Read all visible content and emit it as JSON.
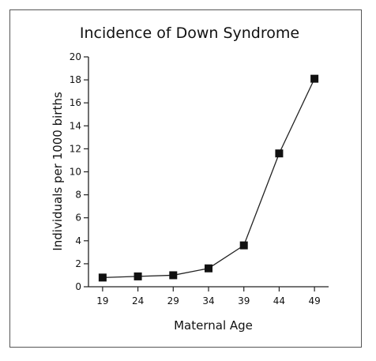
{
  "chart_data": {
    "type": "line",
    "title": "Incidence of Down Syndrome",
    "xlabel": "Maternal Age",
    "ylabel": "Individuals per 1000 births",
    "x": [
      19,
      24,
      29,
      34,
      39,
      44,
      49
    ],
    "x_ticks": [
      19,
      24,
      29,
      34,
      39,
      44,
      49
    ],
    "y_ticks": [
      0,
      2,
      4,
      6,
      8,
      10,
      12,
      14,
      16,
      18,
      20
    ],
    "xlim": [
      17,
      51
    ],
    "ylim": [
      0,
      20
    ],
    "grid": false,
    "series": [
      {
        "values": [
          0.8,
          0.9,
          1.0,
          1.6,
          3.6,
          11.6,
          18.1
        ]
      }
    ],
    "marker": "square",
    "line_color": "#222222",
    "marker_color": "#111111"
  }
}
